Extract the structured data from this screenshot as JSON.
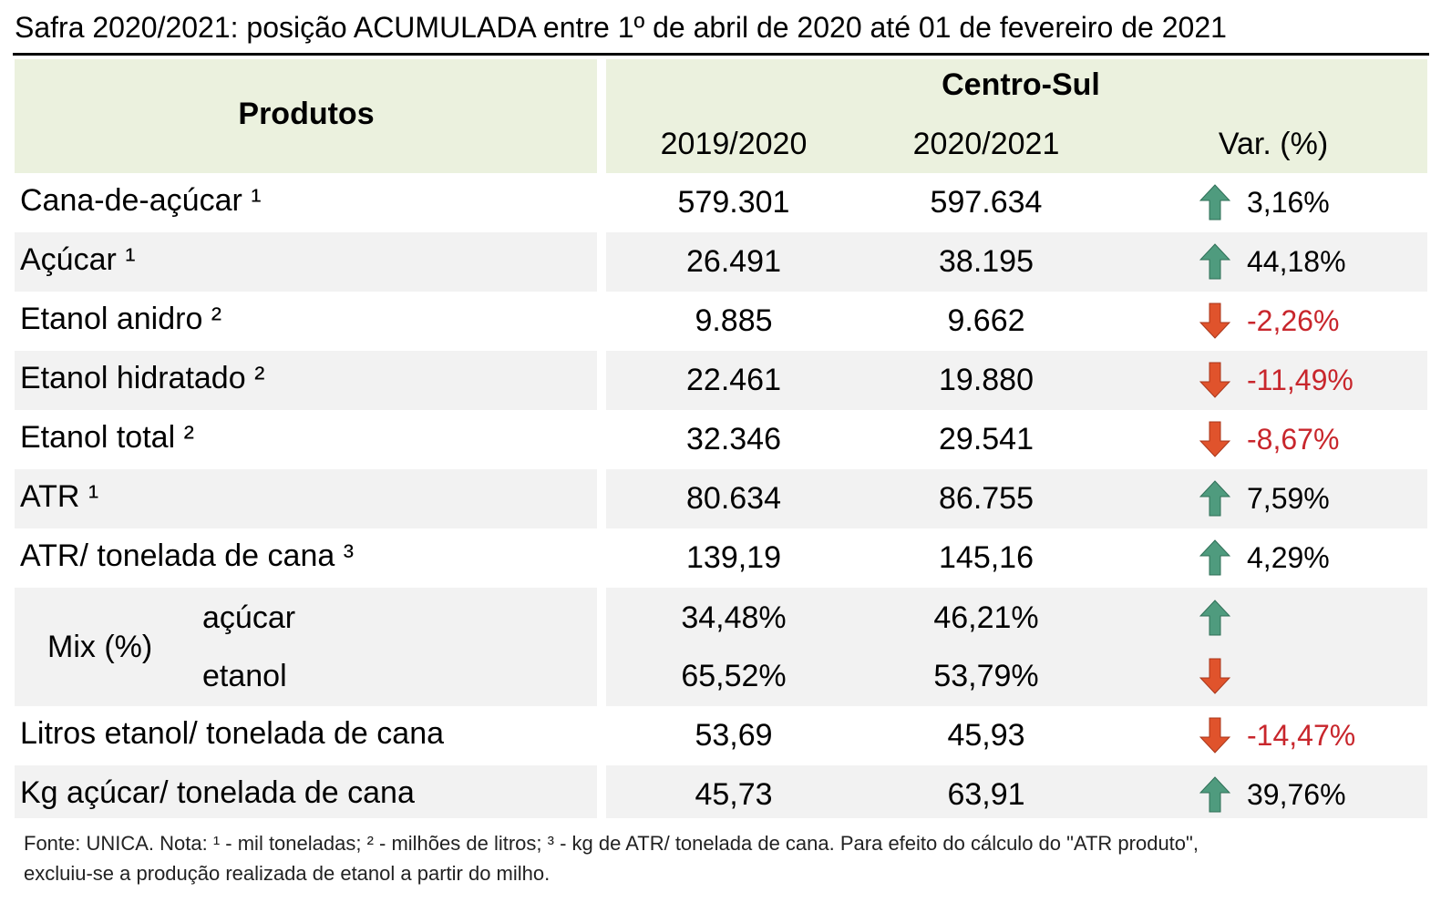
{
  "title": "Safra 2020/2021: posição ACUMULADA entre 1º de abril de 2020 até 01 de fevereiro de 2021",
  "header": {
    "products": "Produtos",
    "region": "Centro-Sul",
    "columns": [
      "2019/2020",
      "2020/2021",
      "Var. (%)"
    ]
  },
  "rows": [
    {
      "label": "Cana-de-açúcar ¹",
      "values": [
        "579.301",
        "597.634"
      ],
      "var": "3,16%",
      "trend": "up"
    },
    {
      "label": "Açúcar ¹",
      "values": [
        "26.491",
        "38.195"
      ],
      "var": "44,18%",
      "trend": "up"
    },
    {
      "label": "Etanol anidro ²",
      "values": [
        "9.885",
        "9.662"
      ],
      "var": "-2,26%",
      "trend": "down"
    },
    {
      "label": "Etanol hidratado ²",
      "values": [
        "22.461",
        "19.880"
      ],
      "var": "-11,49%",
      "trend": "down"
    },
    {
      "label": "Etanol total ²",
      "values": [
        "32.346",
        "29.541"
      ],
      "var": "-8,67%",
      "trend": "down"
    },
    {
      "label": "ATR ¹",
      "values": [
        "80.634",
        "86.755"
      ],
      "var": "7,59%",
      "trend": "up"
    },
    {
      "label": "ATR/ tonelada de cana ³",
      "values": [
        "139,19",
        "145,16"
      ],
      "var": "4,29%",
      "trend": "up"
    },
    {
      "label": "Mix (%)",
      "items": [
        {
          "label": "açúcar",
          "values": [
            "34,48%",
            "46,21%"
          ],
          "trend": "up"
        },
        {
          "label": "etanol",
          "values": [
            "65,52%",
            "53,79%"
          ],
          "trend": "down"
        }
      ]
    },
    {
      "label": "Litros etanol/ tonelada de cana",
      "values": [
        "53,69",
        "45,93"
      ],
      "var": "-14,47%",
      "trend": "down"
    },
    {
      "label": "Kg açúcar/ tonelada de cana",
      "values": [
        "45,73",
        "63,91"
      ],
      "var": "39,76%",
      "trend": "up"
    }
  ],
  "footnote": [
    "Fonte: UNICA. Nota: ¹ - mil toneladas; ² - milhões de litros; ³ - kg de ATR/ tonelada de cana. Para efeito do cálculo do \"ATR produto\",",
    "excluiu-se a produção realizada de etanol a partir do milho."
  ]
}
